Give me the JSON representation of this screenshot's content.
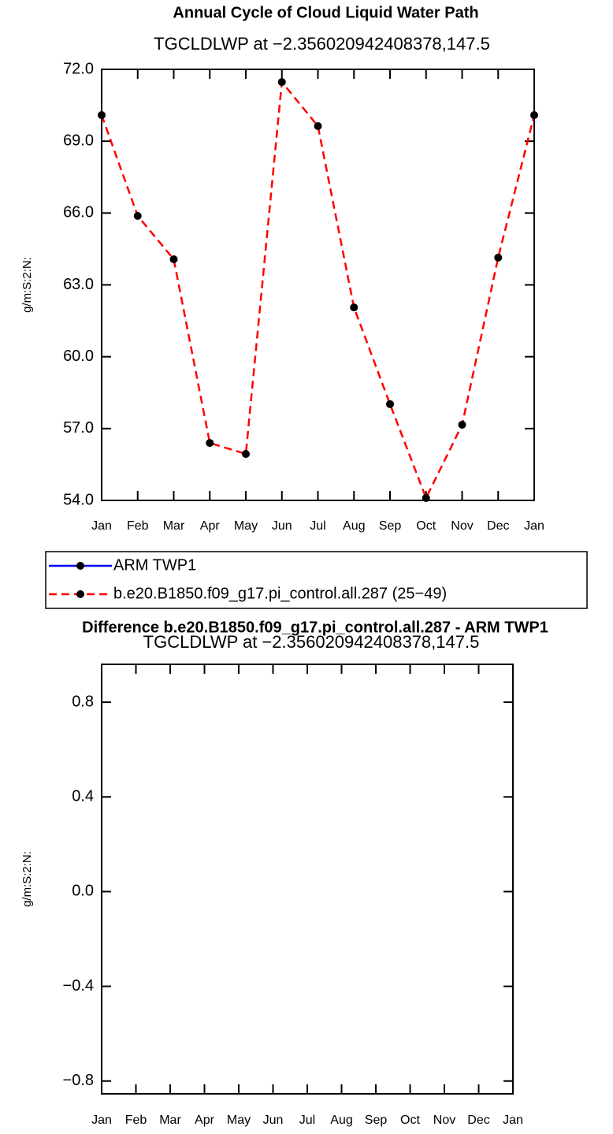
{
  "chart_data": [
    {
      "type": "line",
      "title": "Annual Cycle of Cloud Liquid Water Path",
      "subtitle": "TGCLDLWP  at  −2.356020942408378,147.5",
      "ylabel": "g/m:S:2:N:",
      "categories": [
        "Jan",
        "Feb",
        "Mar",
        "Apr",
        "May",
        "Jun",
        "Jul",
        "Aug",
        "Sep",
        "Oct",
        "Nov",
        "Dec",
        "Jan"
      ],
      "ylim": [
        54,
        72
      ],
      "yticks": [
        {
          "value": 54,
          "label": "54.0"
        },
        {
          "value": 57,
          "label": "57.0"
        },
        {
          "value": 60,
          "label": "60.0"
        },
        {
          "value": 63,
          "label": "63.0"
        },
        {
          "value": 66,
          "label": "66.0"
        },
        {
          "value": 69,
          "label": "69.0"
        },
        {
          "value": 72,
          "label": "72.0"
        }
      ],
      "series": [
        {
          "name": "ARM  TWP1",
          "color": "#0000ff",
          "values": [
            null,
            null,
            null,
            null,
            null,
            null,
            null,
            null,
            null,
            null,
            null,
            null,
            null
          ]
        },
        {
          "name": "b.e20.B1850.f09_g17.pi_control.all.287 (25−49)",
          "color": "#ff0000",
          "dashed": true,
          "values": [
            70.09,
            65.88,
            64.07,
            56.4,
            55.94,
            71.47,
            69.63,
            62.06,
            58.02,
            54.1,
            57.16,
            64.14,
            70.09
          ]
        }
      ]
    },
    {
      "type": "line",
      "title": "Difference b.e20.B1850.f09_g17.pi_control.all.287 - ARM TWP1",
      "subtitle": "TGCLDLWP  at  −2.356020942408378,147.5",
      "ylabel": "g/m:S:2:N:",
      "categories": [
        "Jan",
        "Feb",
        "Mar",
        "Apr",
        "May",
        "Jun",
        "Jul",
        "Aug",
        "Sep",
        "Oct",
        "Nov",
        "Dec",
        "Jan"
      ],
      "ylim": [
        -0.854,
        0.96
      ],
      "yticks": [
        {
          "value": -0.8,
          "label": "−0.8"
        },
        {
          "value": -0.4,
          "label": "−0.4"
        },
        {
          "value": 0,
          "label": "0.0"
        },
        0.4,
        0.8
      ]
    }
  ]
}
